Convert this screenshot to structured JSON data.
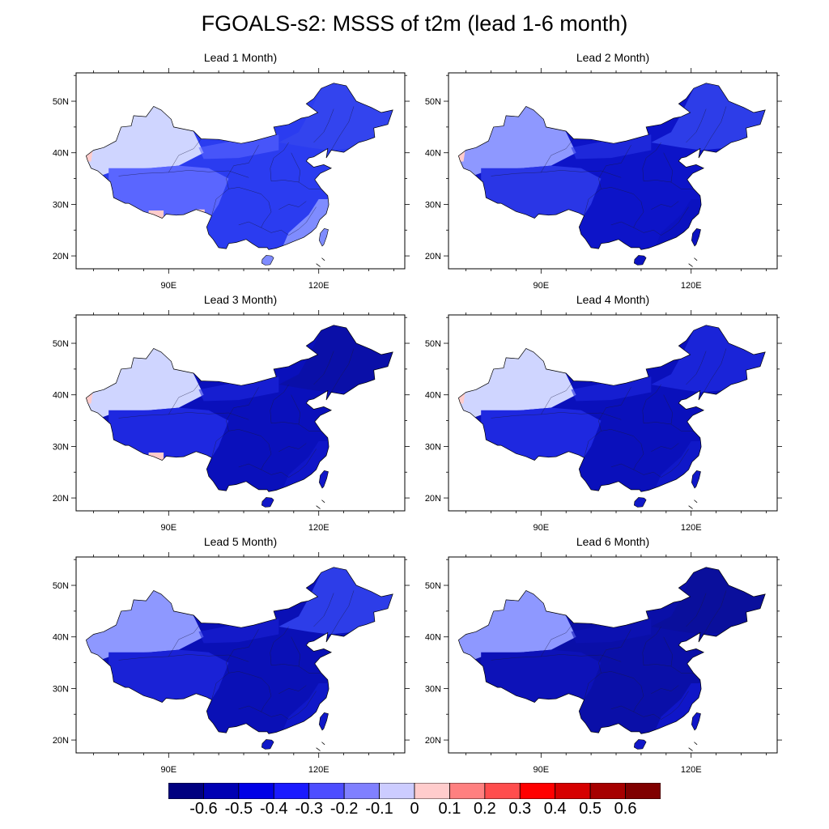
{
  "title": "FGOALS-s2: MSSS of t2m (lead 1-6 month)",
  "lat_ticks": [
    "20N",
    "30N",
    "40N",
    "50N"
  ],
  "lon_ticks": [
    "90E",
    "120E"
  ],
  "panels": [
    {
      "title": "Lead 1 Month)",
      "west": "#cfd5ff",
      "tibet": "#5a66ff",
      "east": "#2b3cf0",
      "south": "#7f8cff",
      "northeast": "#3344ee",
      "hot_spots": 3
    },
    {
      "title": "Lead 2 Month)",
      "west": "#8e98ff",
      "tibet": "#2a36e6",
      "east": "#0d14c8",
      "south": "#0b12c0",
      "northeast": "#2d3de8",
      "hot_spots": 1
    },
    {
      "title": "Lead 3 Month)",
      "west": "#cfd5ff",
      "tibet": "#1e28e0",
      "east": "#0a10bb",
      "south": "#1016c8",
      "northeast": "#0a0fa8",
      "hot_spots": 2
    },
    {
      "title": "Lead 4 Month)",
      "west": "#cfd5ff",
      "tibet": "#1e28e0",
      "east": "#0a10bb",
      "south": "#1018c8",
      "northeast": "#1a24d8",
      "hot_spots": 1
    },
    {
      "title": "Lead 5 Month)",
      "west": "#8e98ff",
      "tibet": "#1a22d6",
      "east": "#0a10b6",
      "south": "#1018c8",
      "northeast": "#2d3de8",
      "hot_spots": 0
    },
    {
      "title": "Lead 6 Month)",
      "west": "#8e98ff",
      "tibet": "#0d12b8",
      "east": "#0a0fa8",
      "south": "#1016c8",
      "northeast": "#0a0f9c",
      "hot_spots": 0
    }
  ],
  "colorbar": {
    "colors": [
      "#000080",
      "#0000b3",
      "#0000e6",
      "#1a1aff",
      "#4d4dff",
      "#8080ff",
      "#ccccff",
      "#ffcccc",
      "#ff8080",
      "#ff4d4d",
      "#ff0000",
      "#d60000",
      "#a60000",
      "#800000"
    ],
    "labels": [
      "-0.6",
      "-0.5",
      "-0.4",
      "-0.3",
      "-0.2",
      "-0.1",
      "0",
      "0.1",
      "0.2",
      "0.3",
      "0.4",
      "0.5",
      "0.6"
    ]
  }
}
